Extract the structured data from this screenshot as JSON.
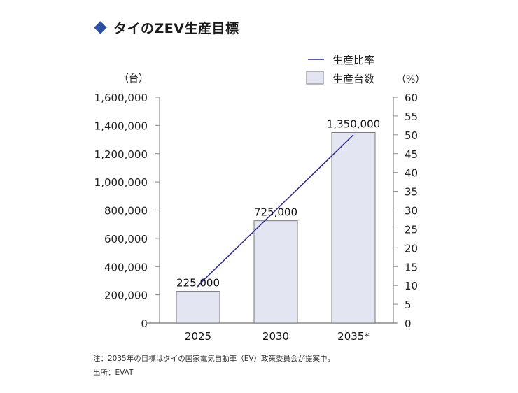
{
  "title": "タイのZEV生産目標",
  "legend": {
    "line_label": "生産比率",
    "bar_label": "生産台数"
  },
  "axes": {
    "left_unit": "（台）",
    "right_unit": "（%）",
    "left_ticks": [
      "1,600,000",
      "1,400,000",
      "1,200,000",
      "1,000,000",
      "800,000",
      "600,000",
      "400,000",
      "200,000",
      "0"
    ],
    "right_ticks": [
      "60",
      "55",
      "50",
      "45",
      "40",
      "35",
      "30",
      "25",
      "20",
      "15",
      "10",
      "5",
      "0"
    ]
  },
  "colors": {
    "bar_fill": "#e4e5f3",
    "bar_stroke": "#7a7a7a",
    "line": "#2a2a8c",
    "axis": "#888888",
    "title_marker": "#2c4fa3"
  },
  "notes": {
    "note": "注：2035年の目標はタイの国家電気自動車（EV）政策委員会が提案中。",
    "source": "出所：EVAT"
  },
  "chart_data": {
    "type": "bar",
    "title": "タイのZEV生産目標",
    "xlabel": "",
    "ylabel": "台",
    "y2label": "%",
    "categories": [
      "2025",
      "2030",
      "2035*"
    ],
    "series": [
      {
        "name": "生産台数",
        "type": "bar",
        "axis": "left",
        "values": [
          225000,
          725000,
          1350000
        ],
        "data_labels": [
          "225,000",
          "725,000",
          "1,350,000"
        ]
      },
      {
        "name": "生産比率",
        "type": "line",
        "axis": "right",
        "values": [
          10,
          30,
          50
        ]
      }
    ],
    "ylim": [
      0,
      1600000
    ],
    "y2lim": [
      0,
      60
    ],
    "yticks_step": 200000,
    "y2ticks_step": 5,
    "grid": false,
    "legend_position": "top-right"
  }
}
